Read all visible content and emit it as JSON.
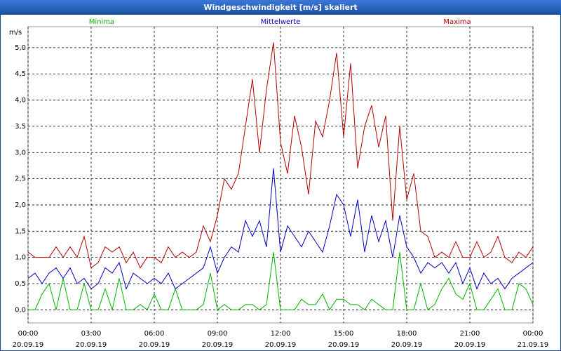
{
  "window_title": "Windgeschwindigkeit [m/s] skaliert",
  "chart_data": {
    "type": "line",
    "y_unit": "m/s",
    "x": [
      0,
      20,
      40,
      60,
      80,
      100,
      120,
      140,
      160,
      180,
      200,
      220,
      240,
      260,
      280,
      300,
      320,
      340,
      360,
      380,
      400,
      420,
      440,
      460,
      480,
      500,
      520,
      540,
      560,
      580,
      600,
      620,
      640,
      660,
      680,
      700,
      720,
      740,
      760,
      780,
      800,
      820,
      840,
      860,
      880,
      900,
      920,
      940,
      960,
      980,
      1000,
      1020,
      1040,
      1060,
      1080,
      1100,
      1120,
      1140,
      1160,
      1180,
      1200,
      1220,
      1240,
      1260,
      1280,
      1300,
      1320,
      1340,
      1360,
      1380,
      1400,
      1420,
      1440
    ],
    "series": [
      {
        "name": "Minima",
        "color": "#00b400",
        "values": [
          0,
          0,
          0.3,
          0.5,
          0,
          0.6,
          0,
          0,
          0.5,
          0,
          0,
          0.4,
          0,
          0.6,
          0,
          0,
          0.1,
          0,
          0.3,
          0,
          0,
          0.4,
          0,
          0,
          0,
          0.1,
          0.7,
          0,
          0.1,
          0,
          0,
          0.1,
          0.1,
          0,
          0.1,
          1.1,
          0,
          0,
          0,
          0.2,
          0.1,
          0.1,
          0.3,
          0,
          0.2,
          0.2,
          0.1,
          0.1,
          0,
          0.2,
          0.1,
          0,
          0,
          1.1,
          0,
          0,
          0.5,
          0,
          0.1,
          0.4,
          0.6,
          0.3,
          0.2,
          0.5,
          0,
          0,
          0.2,
          0.4,
          0,
          0,
          0.5,
          0.4,
          0.1
        ]
      },
      {
        "name": "Mittelwerte",
        "color": "#0000c0",
        "values": [
          0.6,
          0.7,
          0.5,
          0.7,
          0.8,
          0.6,
          0.8,
          0.5,
          0.6,
          0.4,
          0.5,
          0.8,
          0.7,
          0.9,
          0.4,
          0.7,
          0.6,
          0.5,
          0.6,
          0.5,
          0.7,
          0.4,
          0.5,
          0.6,
          0.7,
          0.8,
          1.2,
          0.7,
          1.0,
          1.2,
          1.1,
          1.7,
          1.4,
          1.7,
          1.2,
          2.7,
          1.1,
          1.6,
          1.4,
          1.2,
          1.5,
          1.3,
          1.1,
          1.6,
          2.2,
          2.0,
          1.4,
          2.1,
          1.1,
          1.8,
          1.3,
          1.7,
          1.0,
          1.8,
          1.2,
          1.0,
          0.7,
          0.9,
          0.8,
          0.9,
          0.7,
          0.9,
          0.5,
          0.8,
          0.4,
          0.7,
          0.5,
          0.6,
          0.4,
          0.6,
          0.7,
          0.8,
          0.9
        ]
      },
      {
        "name": "Maxima",
        "color": "#b40000",
        "values": [
          1.1,
          1.0,
          1.0,
          1.0,
          1.2,
          1.0,
          1.2,
          1.0,
          1.4,
          0.8,
          0.9,
          1.2,
          1.1,
          1.2,
          0.9,
          1.1,
          0.8,
          1.0,
          1.0,
          0.9,
          1.2,
          1.0,
          1.1,
          1.0,
          1.1,
          1.6,
          1.3,
          1.8,
          2.5,
          2.3,
          2.6,
          3.5,
          4.4,
          3.0,
          4.2,
          5.1,
          3.2,
          2.6,
          3.7,
          3.1,
          2.2,
          3.6,
          3.3,
          4.0,
          4.9,
          3.3,
          4.7,
          2.7,
          3.5,
          3.9,
          3.1,
          3.7,
          1.7,
          3.5,
          2.1,
          2.6,
          1.5,
          1.4,
          1.0,
          1.1,
          1.0,
          1.3,
          1.0,
          1.0,
          1.3,
          1.0,
          1.1,
          1.4,
          1.0,
          0.9,
          1.1,
          1.0,
          1.2
        ]
      }
    ],
    "xlim": [
      0,
      1440
    ],
    "xticks": [
      {
        "value": 0,
        "label": "00:00\n20.09.19"
      },
      {
        "value": 180,
        "label": "03:00\n20.09.19"
      },
      {
        "value": 360,
        "label": "06:00\n20.09.19"
      },
      {
        "value": 540,
        "label": "09:00\n20.09.19"
      },
      {
        "value": 720,
        "label": "12:00\n20.09.19"
      },
      {
        "value": 900,
        "label": "15:00\n20.09.19"
      },
      {
        "value": 1080,
        "label": "18:00\n20.09.19"
      },
      {
        "value": 1260,
        "label": "21:00\n20.09.19"
      },
      {
        "value": 1440,
        "label": "00:00\n21.09.19"
      }
    ],
    "ylim": [
      -0.25,
      5.4
    ],
    "yticks": [
      {
        "value": 0,
        "label": "0,0"
      },
      {
        "value": 0.5,
        "label": "0,5"
      },
      {
        "value": 1,
        "label": "1,0"
      },
      {
        "value": 1.5,
        "label": "1,5"
      },
      {
        "value": 2,
        "label": "2,0"
      },
      {
        "value": 2.5,
        "label": "2,5"
      },
      {
        "value": 3,
        "label": "3,0"
      },
      {
        "value": 3.5,
        "label": "3,5"
      },
      {
        "value": 4,
        "label": "4,0"
      },
      {
        "value": 4.5,
        "label": "4,5"
      },
      {
        "value": 5,
        "label": "5,0"
      }
    ],
    "grid": true
  }
}
